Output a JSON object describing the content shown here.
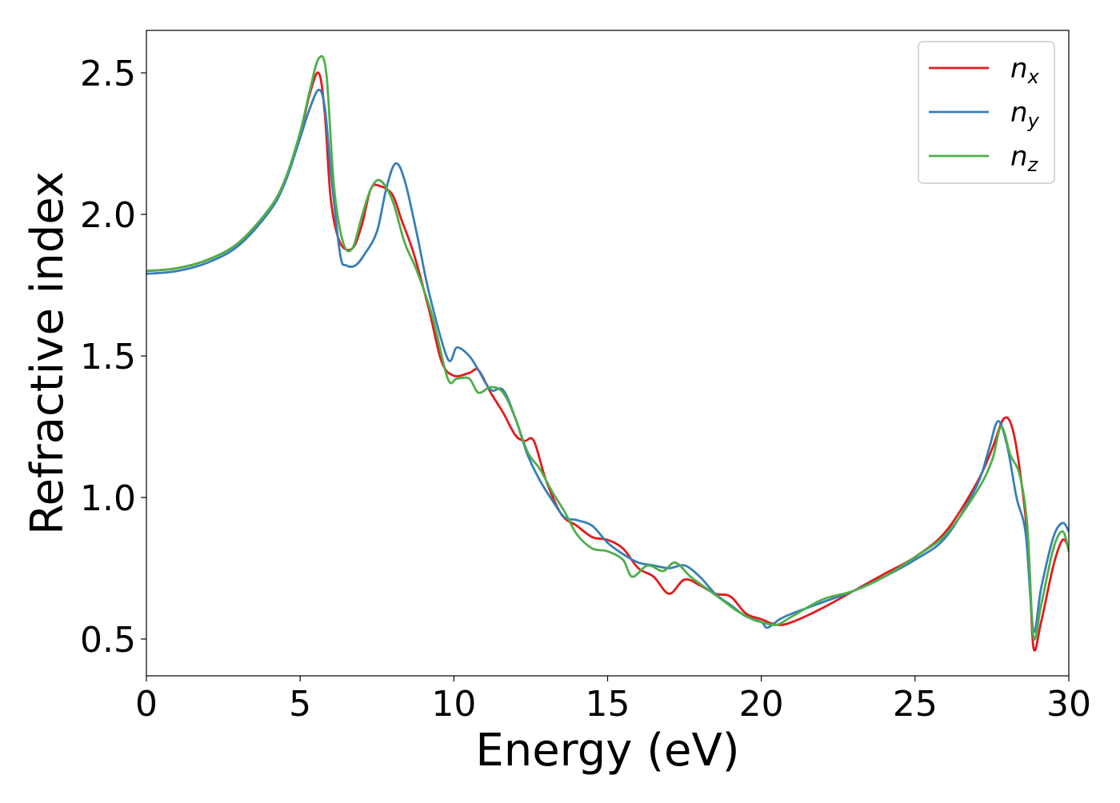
{
  "chart_data": {
    "type": "line",
    "xlabel": "Energy (eV)",
    "ylabel": "Refractive index",
    "xlim": [
      0,
      30
    ],
    "ylim": [
      0.37,
      2.65
    ],
    "xticks": [
      "0",
      "5",
      "10",
      "15",
      "20",
      "25",
      "30"
    ],
    "yticks": [
      "0.5",
      "1.0",
      "1.5",
      "2.0",
      "2.5"
    ],
    "grid": false,
    "legend_position": "top-right",
    "series": [
      {
        "name": "n_x",
        "label_base": "n",
        "label_sub": "x",
        "color": "#e41a1c",
        "x": [
          0,
          1,
          2,
          3,
          4,
          4.5,
          5,
          5.3,
          5.6,
          5.8,
          6.0,
          6.3,
          6.7,
          7.0,
          7.3,
          7.6,
          8.0,
          8.3,
          8.7,
          9.2,
          9.6,
          10.0,
          10.5,
          10.8,
          11.2,
          11.6,
          12.0,
          12.3,
          12.6,
          13.0,
          13.5,
          14.0,
          14.5,
          15.0,
          15.5,
          16.0,
          16.5,
          17.0,
          17.5,
          18.0,
          18.5,
          19.0,
          19.5,
          20.0,
          20.5,
          21.0,
          22.0,
          23.0,
          24.0,
          25.0,
          26.0,
          27.0,
          27.5,
          27.9,
          28.2,
          28.5,
          28.7,
          28.85,
          29.1,
          29.5,
          29.8,
          30.0
        ],
        "y": [
          1.8,
          1.81,
          1.84,
          1.9,
          2.02,
          2.12,
          2.28,
          2.42,
          2.5,
          2.36,
          2.05,
          1.9,
          1.88,
          1.96,
          2.09,
          2.1,
          2.07,
          1.98,
          1.86,
          1.66,
          1.48,
          1.43,
          1.44,
          1.45,
          1.37,
          1.3,
          1.22,
          1.2,
          1.2,
          1.06,
          0.94,
          0.9,
          0.86,
          0.85,
          0.82,
          0.75,
          0.72,
          0.66,
          0.71,
          0.69,
          0.66,
          0.65,
          0.59,
          0.57,
          0.55,
          0.56,
          0.61,
          0.67,
          0.73,
          0.79,
          0.88,
          1.05,
          1.17,
          1.28,
          1.23,
          1.02,
          0.8,
          0.47,
          0.56,
          0.76,
          0.85,
          0.82
        ]
      },
      {
        "name": "n_y",
        "label_base": "n",
        "label_sub": "y",
        "color": "#377eb8",
        "x": [
          0,
          1,
          2,
          3,
          4,
          4.5,
          5,
          5.3,
          5.6,
          5.8,
          6.0,
          6.3,
          6.5,
          6.8,
          7.1,
          7.5,
          7.8,
          8.1,
          8.4,
          8.8,
          9.2,
          9.8,
          10.1,
          10.5,
          10.8,
          11.2,
          11.6,
          12.0,
          12.4,
          12.8,
          13.2,
          13.6,
          14.0,
          14.5,
          15.0,
          15.5,
          16.0,
          16.5,
          17.0,
          17.5,
          18.0,
          18.5,
          19.0,
          19.5,
          20.0,
          20.2,
          20.6,
          21.0,
          22.0,
          23.0,
          24.0,
          25.0,
          26.0,
          27.0,
          27.4,
          27.7,
          28.0,
          28.3,
          28.6,
          28.85,
          29.1,
          29.5,
          29.8,
          30.0
        ],
        "y": [
          1.79,
          1.8,
          1.83,
          1.89,
          2.01,
          2.11,
          2.27,
          2.37,
          2.44,
          2.38,
          2.15,
          1.86,
          1.82,
          1.82,
          1.86,
          1.94,
          2.09,
          2.18,
          2.12,
          1.93,
          1.72,
          1.49,
          1.53,
          1.5,
          1.45,
          1.38,
          1.38,
          1.28,
          1.15,
          1.06,
          0.99,
          0.93,
          0.92,
          0.9,
          0.84,
          0.8,
          0.77,
          0.76,
          0.75,
          0.76,
          0.72,
          0.66,
          0.62,
          0.58,
          0.56,
          0.54,
          0.57,
          0.59,
          0.63,
          0.67,
          0.72,
          0.78,
          0.86,
          1.04,
          1.17,
          1.27,
          1.18,
          1.0,
          0.87,
          0.53,
          0.68,
          0.86,
          0.91,
          0.88
        ]
      },
      {
        "name": "n_z",
        "label_base": "n",
        "label_sub": "z",
        "color": "#4daf4a",
        "x": [
          0,
          1,
          2,
          3,
          4,
          4.5,
          5,
          5.3,
          5.6,
          5.85,
          6.1,
          6.4,
          6.7,
          7.0,
          7.3,
          7.6,
          8.0,
          8.4,
          8.8,
          9.3,
          9.8,
          10.1,
          10.5,
          10.8,
          11.2,
          11.6,
          12.0,
          12.4,
          12.8,
          13.2,
          13.6,
          14.0,
          14.5,
          15.0,
          15.5,
          15.8,
          16.3,
          16.8,
          17.2,
          17.7,
          18.2,
          18.7,
          19.2,
          19.7,
          20.0,
          20.5,
          21.0,
          22.0,
          23.0,
          24.0,
          25.0,
          26.0,
          27.0,
          27.5,
          27.8,
          28.1,
          28.4,
          28.65,
          28.85,
          29.1,
          29.5,
          29.8,
          30.0
        ],
        "y": [
          1.8,
          1.81,
          1.84,
          1.9,
          2.02,
          2.12,
          2.29,
          2.43,
          2.55,
          2.5,
          2.1,
          1.9,
          1.88,
          1.99,
          2.09,
          2.12,
          2.05,
          1.9,
          1.8,
          1.64,
          1.42,
          1.42,
          1.42,
          1.37,
          1.39,
          1.37,
          1.28,
          1.16,
          1.1,
          1.02,
          0.95,
          0.87,
          0.82,
          0.81,
          0.78,
          0.72,
          0.76,
          0.74,
          0.77,
          0.72,
          0.68,
          0.64,
          0.6,
          0.57,
          0.56,
          0.55,
          0.58,
          0.64,
          0.67,
          0.72,
          0.79,
          0.87,
          1.02,
          1.13,
          1.25,
          1.15,
          1.08,
          0.9,
          0.51,
          0.62,
          0.82,
          0.88,
          0.81
        ]
      }
    ]
  }
}
